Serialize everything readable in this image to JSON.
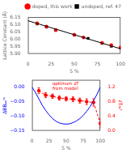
{
  "chart_data": [
    {
      "type": "scatter",
      "xlabel": "S %",
      "ylabel": "Lattice Constant (Å)",
      "xlim": [
        0,
        100
      ],
      "xticks": [
        0,
        25,
        50,
        75,
        100
      ],
      "ylim": [
        5.9,
        6.15
      ],
      "yticks": [
        {
          "value": 5.9,
          "label": "5.90"
        },
        5.95,
        {
          "value": 6.0,
          "label": "6.00"
        },
        6.05,
        {
          "value": 6.1,
          "label": "6.10"
        },
        6.15
      ],
      "grid": false,
      "legend": "upper right",
      "series": [
        {
          "type": "line",
          "color": "black",
          "line_style": "solid",
          "x": [
            0,
            100
          ],
          "values": [
            6.125,
            5.935
          ]
        },
        {
          "name": "doped, this work",
          "color": "red",
          "marker": "circle",
          "x": [
            10,
            20,
            30,
            50,
            60,
            80,
            90,
            100
          ],
          "values": [
            6.108,
            6.085,
            6.062,
            6.03,
            6.012,
            5.975,
            5.96,
            5.945
          ]
        },
        {
          "name": "undoped, ref. 47",
          "color": "black",
          "marker": "square",
          "x": [
            10,
            20,
            30,
            50,
            65,
            80,
            90,
            100
          ],
          "values": [
            6.103,
            6.082,
            6.06,
            6.028,
            6.005,
            5.972,
            5.952,
            5.94
          ]
        }
      ]
    },
    {
      "type": "line",
      "xlabel": "S %",
      "ylabel": "ΔBBₚᵤʳᵉ",
      "y2label": "zT₀ₕᵗ",
      "xlim": [
        0,
        100
      ],
      "xticks": [
        0,
        25,
        50,
        75,
        100
      ],
      "ylim": [
        -0.15,
        0.025
      ],
      "yticks": [
        {
          "value": -0.15,
          "label": "−0.15"
        },
        {
          "value": -0.1,
          "label": "−0.10"
        },
        {
          "value": -0.05,
          "label": "−0.05"
        },
        {
          "value": 0,
          "label": "0.00"
        }
      ],
      "y2lim": [
        0.0,
        1.4
      ],
      "y2ticks": [
        {
          "value": 0,
          "label": "0.0"
        },
        0.4,
        0.8,
        1.2
      ],
      "grid": false,
      "annotation": {
        "text": "optimum zT\nfrom model",
        "color": "red"
      },
      "series": [
        {
          "color": "blue",
          "line_style": "solid",
          "x": [
            0,
            5,
            10,
            15,
            20,
            25,
            30,
            35,
            40,
            45,
            50,
            55,
            60,
            65,
            70,
            75,
            80,
            85,
            90,
            95,
            100
          ],
          "values": [
            0.0,
            -0.018,
            -0.04,
            -0.062,
            -0.08,
            -0.095,
            -0.108,
            -0.117,
            -0.123,
            -0.126,
            -0.127,
            -0.126,
            -0.122,
            -0.116,
            -0.108,
            -0.097,
            -0.083,
            -0.067,
            -0.047,
            -0.025,
            0.0
          ]
        },
        {
          "axis": "y2",
          "color": "red",
          "line_style": "dashed",
          "marker": "circle",
          "x": [
            10,
            20,
            30,
            40,
            50,
            60,
            70,
            80,
            90,
            100
          ],
          "values": [
            1.1,
            0.98,
            0.95,
            0.9,
            0.88,
            0.87,
            0.83,
            0.8,
            0.78,
            0.2
          ],
          "yerr": [
            0.08,
            0.07,
            0.06,
            0.06,
            0.06,
            0.07,
            0.07,
            0.08,
            0.1,
            0.12
          ]
        }
      ]
    }
  ]
}
